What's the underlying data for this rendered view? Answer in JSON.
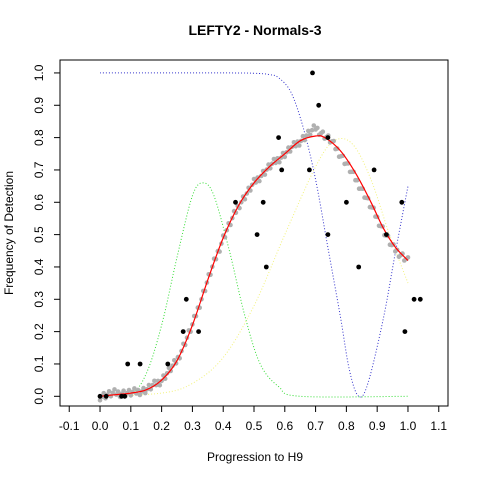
{
  "chart_data": {
    "type": "scatter",
    "title": "LEFTY2 - Normals-3",
    "xlabel": "Progression to H9",
    "ylabel": "Frequency of Detection",
    "xlim": [
      -0.13,
      1.13
    ],
    "ylim": [
      -0.03,
      1.04
    ],
    "xticks": [
      "-0.1",
      "0.0",
      "0.1",
      "0.2",
      "0.3",
      "0.4",
      "0.5",
      "0.6",
      "0.7",
      "0.8",
      "0.9",
      "1.0",
      "1.1"
    ],
    "yticks": [
      "0.0",
      "0.1",
      "0.2",
      "0.3",
      "0.4",
      "0.5",
      "0.6",
      "0.7",
      "0.8",
      "0.9",
      "1.0"
    ],
    "grid": false,
    "colors": {
      "detection_points": "#000000",
      "smoothed_points": "#b0b0b0",
      "fit_line": "#ff0000",
      "green_curve": "#33dd33",
      "yellow_curve": "#f2f27a",
      "blue_curve": "#3333cc"
    },
    "detection_points": [
      [
        0.0,
        0.0
      ],
      [
        0.02,
        0.0
      ],
      [
        0.07,
        0.0
      ],
      [
        0.08,
        0.0
      ],
      [
        0.09,
        0.1
      ],
      [
        0.13,
        0.1
      ],
      [
        0.22,
        0.1
      ],
      [
        0.27,
        0.2
      ],
      [
        0.28,
        0.3
      ],
      [
        0.32,
        0.2
      ],
      [
        0.44,
        0.6
      ],
      [
        0.51,
        0.5
      ],
      [
        0.53,
        0.6
      ],
      [
        0.54,
        0.4
      ],
      [
        0.58,
        0.8
      ],
      [
        0.59,
        0.7
      ],
      [
        0.68,
        0.7
      ],
      [
        0.69,
        1.0
      ],
      [
        0.71,
        0.9
      ],
      [
        0.74,
        0.5
      ],
      [
        0.74,
        0.8
      ],
      [
        0.8,
        0.6
      ],
      [
        0.84,
        0.4
      ],
      [
        0.89,
        0.7
      ],
      [
        0.93,
        0.5
      ],
      [
        0.98,
        0.6
      ],
      [
        0.99,
        0.2
      ],
      [
        1.02,
        0.3
      ],
      [
        1.04,
        0.3
      ]
    ],
    "fit_line": [
      [
        0.0,
        0.0
      ],
      [
        0.05,
        0.005
      ],
      [
        0.1,
        0.01
      ],
      [
        0.15,
        0.02
      ],
      [
        0.2,
        0.05
      ],
      [
        0.25,
        0.11
      ],
      [
        0.3,
        0.22
      ],
      [
        0.35,
        0.36
      ],
      [
        0.4,
        0.49
      ],
      [
        0.45,
        0.59
      ],
      [
        0.5,
        0.66
      ],
      [
        0.55,
        0.71
      ],
      [
        0.6,
        0.75
      ],
      [
        0.65,
        0.79
      ],
      [
        0.7,
        0.805
      ],
      [
        0.73,
        0.8
      ],
      [
        0.78,
        0.76
      ],
      [
        0.83,
        0.69
      ],
      [
        0.88,
        0.6
      ],
      [
        0.92,
        0.52
      ],
      [
        0.96,
        0.46
      ],
      [
        1.0,
        0.42
      ]
    ],
    "smoothed_points": [
      [
        0.0,
        0.0
      ],
      [
        0.05,
        0.01
      ],
      [
        0.1,
        0.01
      ],
      [
        0.15,
        0.02
      ],
      [
        0.2,
        0.05
      ],
      [
        0.25,
        0.11
      ],
      [
        0.3,
        0.22
      ],
      [
        0.35,
        0.36
      ],
      [
        0.4,
        0.49
      ],
      [
        0.45,
        0.59
      ],
      [
        0.5,
        0.66
      ],
      [
        0.55,
        0.71
      ],
      [
        0.6,
        0.75
      ],
      [
        0.65,
        0.79
      ],
      [
        0.7,
        0.83
      ],
      [
        0.75,
        0.79
      ],
      [
        0.8,
        0.72
      ],
      [
        0.85,
        0.64
      ],
      [
        0.9,
        0.55
      ],
      [
        0.95,
        0.46
      ],
      [
        1.0,
        0.42
      ]
    ],
    "green_curve": [
      [
        0.0,
        0.0
      ],
      [
        0.1,
        0.01
      ],
      [
        0.15,
        0.07
      ],
      [
        0.2,
        0.22
      ],
      [
        0.25,
        0.43
      ],
      [
        0.3,
        0.62
      ],
      [
        0.335,
        0.66
      ],
      [
        0.37,
        0.62
      ],
      [
        0.42,
        0.45
      ],
      [
        0.47,
        0.25
      ],
      [
        0.52,
        0.1
      ],
      [
        0.58,
        0.03
      ],
      [
        0.65,
        0.0
      ],
      [
        1.0,
        0.0
      ]
    ],
    "yellow_curve": [
      [
        0.0,
        0.0
      ],
      [
        0.2,
        0.01
      ],
      [
        0.3,
        0.04
      ],
      [
        0.4,
        0.12
      ],
      [
        0.5,
        0.28
      ],
      [
        0.6,
        0.5
      ],
      [
        0.7,
        0.71
      ],
      [
        0.76,
        0.79
      ],
      [
        0.82,
        0.78
      ],
      [
        0.88,
        0.67
      ],
      [
        0.94,
        0.5
      ],
      [
        1.0,
        0.35
      ]
    ],
    "blue_curve": [
      [
        0.0,
        1.0
      ],
      [
        0.4,
        1.0
      ],
      [
        0.5,
        0.999
      ],
      [
        0.55,
        0.995
      ],
      [
        0.58,
        0.985
      ],
      [
        0.62,
        0.94
      ],
      [
        0.66,
        0.83
      ],
      [
        0.7,
        0.67
      ],
      [
        0.74,
        0.46
      ],
      [
        0.78,
        0.25
      ],
      [
        0.81,
        0.08
      ],
      [
        0.84,
        0.0
      ],
      [
        0.87,
        0.04
      ],
      [
        0.92,
        0.24
      ],
      [
        0.96,
        0.45
      ],
      [
        1.0,
        0.65
      ]
    ]
  }
}
